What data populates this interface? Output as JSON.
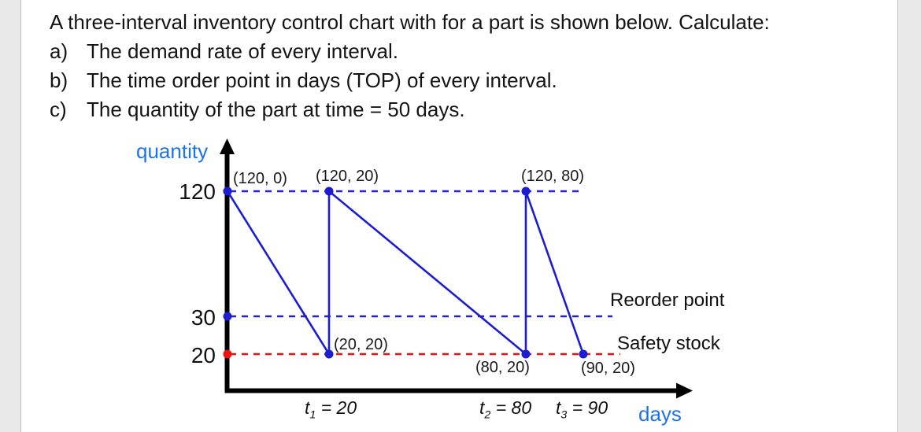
{
  "question": {
    "intro": "A three-interval inventory control chart with for a part is shown below. Calculate:",
    "items": [
      {
        "letter": "a)",
        "text": "The demand rate of every interval."
      },
      {
        "letter": "b)",
        "text": "The time order point in days (TOP) of every interval."
      },
      {
        "letter": "c)",
        "text": "The quantity of the part at time = 50 days."
      }
    ]
  },
  "chart": {
    "y_axis_title": "quantity",
    "x_axis_title": "days",
    "y_ticks": [
      "120",
      "30",
      "20"
    ],
    "point_labels": [
      "(120, 0)",
      "(120, 20)",
      "(120, 80)",
      "(20, 20)",
      "(80, 20)",
      "(90, 20)"
    ],
    "right_labels": {
      "reorder": "Reorder point",
      "safety": "Safety stock"
    },
    "x_ticks": [
      {
        "base": "t",
        "sub": "1",
        "rest": " = 20"
      },
      {
        "base": "t",
        "sub": "2",
        "rest": " = 80"
      },
      {
        "base": "t",
        "sub": "3",
        "rest": " = 90"
      }
    ],
    "colors": {
      "series_blue": "#1c1cd0",
      "dashed_blue": "#2222dd",
      "dashed_red": "#ee1111",
      "axis_black": "#000000",
      "axis_title_blue": "#1e73e8"
    }
  },
  "chart_data": {
    "type": "line",
    "description": "Three-interval sawtooth inventory level vs time",
    "xlabel": "days",
    "ylabel": "quantity",
    "y_tick_values": [
      120,
      30,
      20
    ],
    "x_tick_values": [
      20,
      80,
      90
    ],
    "max_quantity": 120,
    "reorder_point": 30,
    "safety_stock": 20,
    "interval_ends_days": [
      20,
      80,
      90
    ],
    "series": [
      {
        "name": "inventory level",
        "points": [
          [
            0,
            120
          ],
          [
            20,
            20
          ],
          [
            20,
            120
          ],
          [
            80,
            20
          ],
          [
            80,
            120
          ],
          [
            90,
            20
          ]
        ]
      }
    ],
    "levels": [
      {
        "value": 120,
        "style": "blue"
      },
      {
        "value": 30,
        "style": "blue"
      },
      {
        "value": 20,
        "style": "red"
      }
    ],
    "axis_dots": [
      {
        "x": 0,
        "y": 120,
        "style": "blue"
      },
      {
        "x": 0,
        "y": 30,
        "style": "blue"
      },
      {
        "x": 0,
        "y": 20,
        "style": "red"
      }
    ],
    "annotated_points": [
      {
        "label": "(120, 0)",
        "meaning": "quantity 120 at day 0"
      },
      {
        "label": "(120, 20)",
        "meaning": "quantity 120 at day 20"
      },
      {
        "label": "(120, 80)",
        "meaning": "quantity 120 at day 80"
      },
      {
        "label": "(20, 20)",
        "meaning": "quantity 20 at day 20"
      },
      {
        "label": "(80, 20)",
        "meaning": "quantity 20 at day 80"
      },
      {
        "label": "(90, 20)",
        "meaning": "quantity 20 at day 90"
      }
    ],
    "annotations": [
      "Reorder point",
      "Safety stock"
    ],
    "legend": "none",
    "grid": "off"
  }
}
